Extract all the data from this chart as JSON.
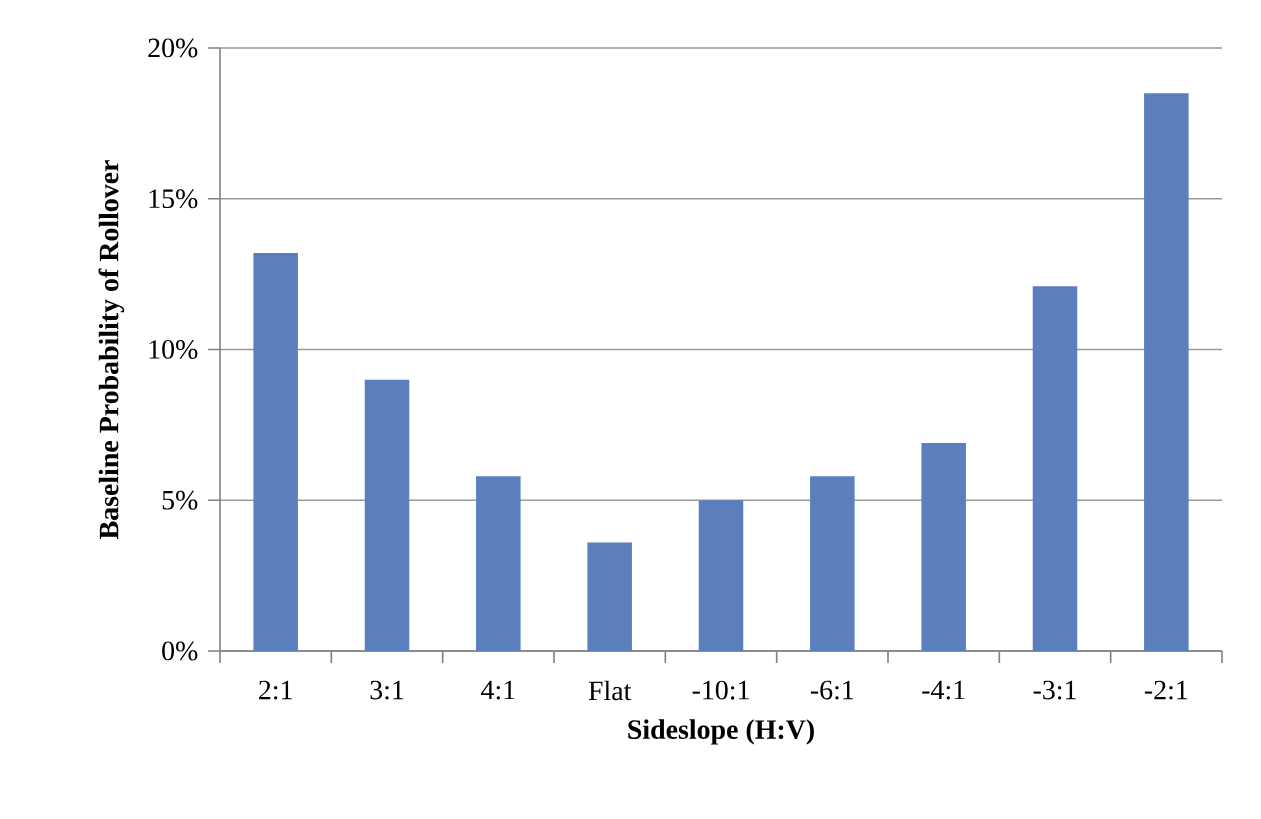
{
  "chart_data": {
    "type": "bar",
    "xlabel": "Sideslope (H:V)",
    "ylabel": "Baseline Probability of Rollover",
    "categories": [
      "2:1",
      "3:1",
      "4:1",
      "Flat",
      "-10:1",
      "-6:1",
      "-4:1",
      "-3:1",
      "-2:1"
    ],
    "values": [
      13.2,
      9.0,
      5.8,
      3.6,
      5.0,
      5.8,
      6.9,
      12.1,
      18.5
    ],
    "color": "#5b7fbc",
    "ylim": [
      0,
      20
    ],
    "yticks": [
      {
        "value": 0,
        "label": "0%"
      },
      {
        "value": 5,
        "label": "5%"
      },
      {
        "value": 10,
        "label": "10%"
      },
      {
        "value": 15,
        "label": "15%"
      },
      {
        "value": 20,
        "label": "20%"
      }
    ],
    "grid": "y"
  }
}
